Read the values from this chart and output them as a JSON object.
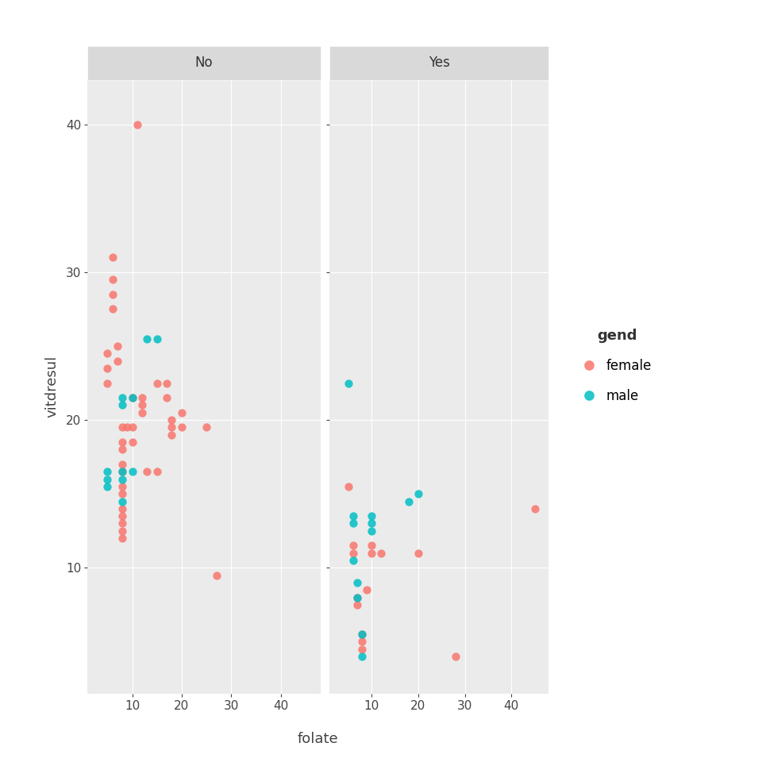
{
  "title_no": "No",
  "title_yes": "Yes",
  "xlabel": "folate",
  "ylabel": "vitdresul",
  "legend_title": "gend",
  "legend_labels": [
    "female",
    "male"
  ],
  "female_color": "#F8766D",
  "male_color": "#00BFC4",
  "panel_bg": "#EBEBEB",
  "grid_color": "#FFFFFF",
  "strip_bg": "#D9D9D9",
  "ylim": [
    1.5,
    43
  ],
  "xlim": [
    1,
    48
  ],
  "yticks": [
    10,
    20,
    30,
    40
  ],
  "xticks": [
    10,
    20,
    30,
    40
  ],
  "marker_size": 55,
  "alpha": 0.85,
  "no_female": [
    [
      5,
      24.5
    ],
    [
      5,
      23.5
    ],
    [
      5,
      22.5
    ],
    [
      6,
      31
    ],
    [
      6,
      29.5
    ],
    [
      6,
      28.5
    ],
    [
      6,
      27.5
    ],
    [
      7,
      25
    ],
    [
      7,
      24
    ],
    [
      8,
      19.5
    ],
    [
      8,
      18.5
    ],
    [
      8,
      18
    ],
    [
      8,
      17
    ],
    [
      8,
      16.5
    ],
    [
      8,
      15.5
    ],
    [
      8,
      15
    ],
    [
      8,
      14
    ],
    [
      8,
      13.5
    ],
    [
      8,
      13
    ],
    [
      8,
      12.5
    ],
    [
      8,
      12
    ],
    [
      9,
      19.5
    ],
    [
      10,
      21.5
    ],
    [
      10,
      19.5
    ],
    [
      10,
      18.5
    ],
    [
      11,
      40
    ],
    [
      12,
      21.5
    ],
    [
      12,
      21
    ],
    [
      12,
      20.5
    ],
    [
      13,
      16.5
    ],
    [
      15,
      22.5
    ],
    [
      15,
      16.5
    ],
    [
      17,
      22.5
    ],
    [
      17,
      21.5
    ],
    [
      18,
      20
    ],
    [
      18,
      19.5
    ],
    [
      18,
      19
    ],
    [
      20,
      20.5
    ],
    [
      20,
      19.5
    ],
    [
      25,
      19.5
    ],
    [
      27,
      9.5
    ]
  ],
  "no_male": [
    [
      5,
      16.5
    ],
    [
      5,
      16
    ],
    [
      5,
      15.5
    ],
    [
      8,
      21.5
    ],
    [
      8,
      21
    ],
    [
      8,
      16.5
    ],
    [
      8,
      16
    ],
    [
      8,
      14.5
    ],
    [
      10,
      21.5
    ],
    [
      10,
      16.5
    ],
    [
      13,
      25.5
    ],
    [
      15,
      25.5
    ]
  ],
  "yes_female": [
    [
      5,
      15.5
    ],
    [
      6,
      11.5
    ],
    [
      6,
      11
    ],
    [
      7,
      8
    ],
    [
      7,
      7.5
    ],
    [
      8,
      5.5
    ],
    [
      8,
      5
    ],
    [
      8,
      4.5
    ],
    [
      9,
      8.5
    ],
    [
      10,
      11.5
    ],
    [
      10,
      11
    ],
    [
      12,
      11
    ],
    [
      20,
      11
    ],
    [
      28,
      4
    ],
    [
      45,
      14
    ]
  ],
  "yes_male": [
    [
      5,
      22.5
    ],
    [
      6,
      13.5
    ],
    [
      6,
      13
    ],
    [
      6,
      10.5
    ],
    [
      7,
      9
    ],
    [
      7,
      8
    ],
    [
      8,
      5.5
    ],
    [
      8,
      4
    ],
    [
      10,
      13.5
    ],
    [
      10,
      13
    ],
    [
      10,
      12.5
    ],
    [
      18,
      14.5
    ],
    [
      20,
      15
    ]
  ]
}
